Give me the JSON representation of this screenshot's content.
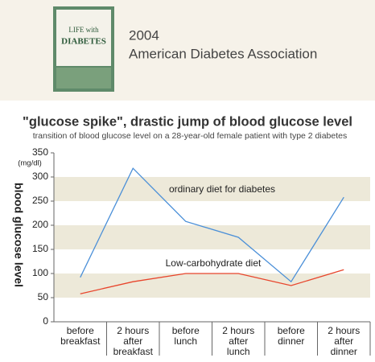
{
  "header": {
    "year": "2004",
    "organization": "American Diabetes Association",
    "cover_title": [
      "LIFE with",
      "DIABETES"
    ]
  },
  "chart_data": {
    "type": "line",
    "title": "\"glucose spike\", drastic jump of blood glucose level",
    "subtitle": "transition of blood glucose level on a 28-year-old female patient with type 2 diabetes",
    "y_label": "blood glucose level",
    "y_unit": "(mg/dl)",
    "categories": [
      [
        "before",
        "breakfast"
      ],
      [
        "2 hours",
        "after",
        "breakfast"
      ],
      [
        "before",
        "lunch"
      ],
      [
        "2 hours",
        "after",
        "lunch"
      ],
      [
        "before",
        "dinner"
      ],
      [
        "2 hours",
        "after",
        "dinner"
      ]
    ],
    "series": [
      {
        "name": "ordinary diet for diabetes",
        "color": "#4a8fd8",
        "values": [
          92,
          318,
          208,
          175,
          83,
          258
        ]
      },
      {
        "name": "Low-carbohydrate diet",
        "color": "#e8452c",
        "values": [
          58,
          83,
          100,
          100,
          75,
          108
        ]
      }
    ],
    "ylim": [
      0,
      350
    ],
    "yticks": [
      0,
      50,
      100,
      150,
      200,
      250,
      300,
      350
    ],
    "banded_grid": true,
    "band_color": "#ede9d9"
  }
}
